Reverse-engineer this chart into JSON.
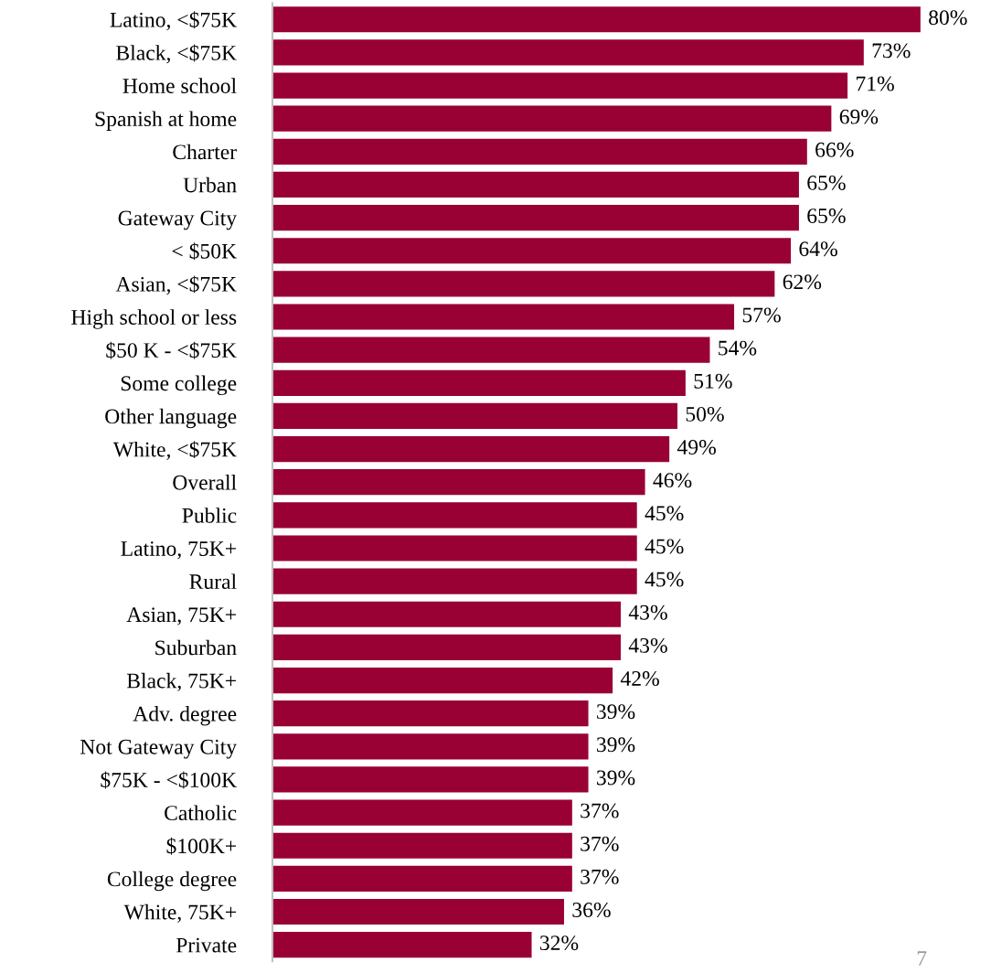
{
  "chart_data": {
    "type": "bar",
    "orientation": "horizontal",
    "color": "#990033",
    "categories": [
      "Latino, <$75K",
      "Black, <$75K",
      "Home school",
      "Spanish at home",
      "Charter",
      "Urban",
      "Gateway City",
      "< $50K",
      "Asian, <$75K",
      "High school or less",
      "$50 K - <$75K",
      "Some college",
      "Other language",
      "White, <$75K",
      "Overall",
      "Public",
      "Latino, 75K+",
      "Rural",
      "Asian, 75K+",
      "Suburban",
      "Black, 75K+",
      "Adv. degree",
      "Not Gateway City",
      "$75K - <$100K",
      "Catholic",
      "$100K+",
      "College degree",
      "White, 75K+",
      "Private"
    ],
    "values": [
      80,
      73,
      71,
      69,
      66,
      65,
      65,
      64,
      62,
      57,
      54,
      51,
      50,
      49,
      46,
      45,
      45,
      45,
      43,
      43,
      42,
      39,
      39,
      39,
      37,
      37,
      37,
      36,
      32
    ],
    "value_labels": [
      "80%",
      "73%",
      "71%",
      "69%",
      "66%",
      "65%",
      "65%",
      "64%",
      "62%",
      "57%",
      "54%",
      "51%",
      "50%",
      "49%",
      "46%",
      "45%",
      "45%",
      "45%",
      "43%",
      "43%",
      "42%",
      "39%",
      "39%",
      "39%",
      "37%",
      "37%",
      "37%",
      "36%",
      "32%"
    ],
    "annotations": [
      "7"
    ]
  }
}
